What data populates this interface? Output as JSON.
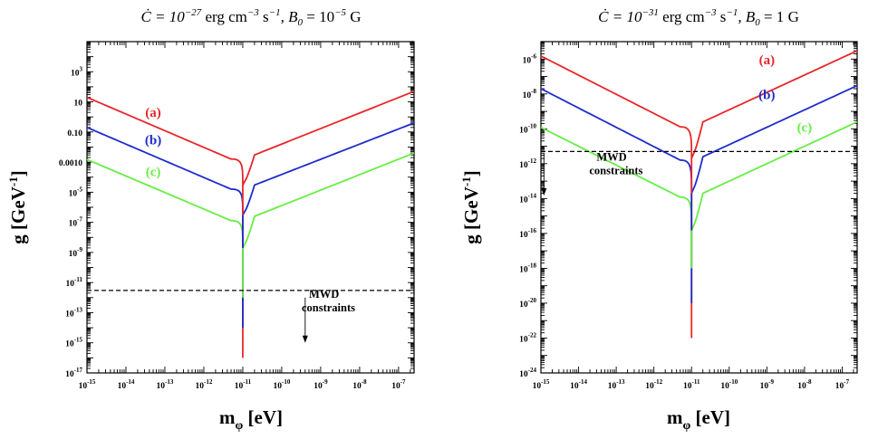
{
  "chart_data": [
    {
      "type": "line",
      "title": "Ċ = 10^−27 erg cm^−3 s^−1,  B₀ = 10^−5 G",
      "title_parts": {
        "c_exp": "-27",
        "b_val": "10",
        "b_exp": "-5",
        "b_unit": "G"
      },
      "xlabel": "m_φ [eV]",
      "ylabel": "g [GeV^-1]",
      "x_scale": "log",
      "y_scale": "log",
      "xlim": [
        1e-15,
        2.5e-07
      ],
      "ylim": [
        1e-17,
        100000.0
      ],
      "x_ticks": [
        {
          "base": "10",
          "exp": "-15",
          "value": 1e-15
        },
        {
          "base": "10",
          "exp": "-14",
          "value": 1e-14
        },
        {
          "base": "10",
          "exp": "-13",
          "value": 1e-13
        },
        {
          "base": "10",
          "exp": "-12",
          "value": 1e-12
        },
        {
          "base": "10",
          "exp": "-11",
          "value": 1e-11
        },
        {
          "base": "10",
          "exp": "-10",
          "value": 1e-10
        },
        {
          "base": "10",
          "exp": "-9",
          "value": 1e-09
        },
        {
          "base": "10",
          "exp": "-8",
          "value": 1e-08
        },
        {
          "base": "10",
          "exp": "-7",
          "value": 1e-07
        }
      ],
      "y_ticks": [
        {
          "base": "10",
          "exp": "3",
          "value": 1000.0
        },
        {
          "base": "10",
          "exp": "",
          "value": 10
        },
        {
          "base": "0.10",
          "exp": "",
          "value": 0.1
        },
        {
          "base": "0.0010",
          "exp": "",
          "value": 0.001
        },
        {
          "base": "10",
          "exp": "-5",
          "value": 1e-05
        },
        {
          "base": "10",
          "exp": "-7",
          "value": 1e-07
        },
        {
          "base": "10",
          "exp": "-9",
          "value": 1e-09
        },
        {
          "base": "10",
          "exp": "-11",
          "value": 1e-11
        },
        {
          "base": "10",
          "exp": "-13",
          "value": 1e-13
        },
        {
          "base": "10",
          "exp": "-15",
          "value": 1e-15
        },
        {
          "base": "10",
          "exp": "-17",
          "value": 1e-17
        }
      ],
      "resonance_mass": 1e-11,
      "series": [
        {
          "name": "(a)",
          "color": "#e8262a",
          "min_y": 1e-16,
          "left": {
            "x": 1e-15,
            "y": 20
          },
          "near": {
            "x": 5e-12,
            "y": 0.0016
          },
          "dip": {
            "x": 1e-11,
            "y": 3e-05
          },
          "right_near": {
            "x": 2e-11,
            "y": 0.003
          },
          "right": {
            "x": 2.5e-07,
            "y": 50
          },
          "label_at": {
            "x": 5e-14,
            "y": 1
          }
        },
        {
          "name": "(b)",
          "color": "#1f2ccc",
          "min_y": 1e-14,
          "left": {
            "x": 1e-15,
            "y": 0.2
          },
          "near": {
            "x": 5e-12,
            "y": 1.6e-05
          },
          "dip": {
            "x": 1e-11,
            "y": 3e-07
          },
          "right_near": {
            "x": 2e-11,
            "y": 3e-05
          },
          "right": {
            "x": 2.5e-07,
            "y": 0.4
          },
          "label_at": {
            "x": 5e-14,
            "y": 0.015
          }
        },
        {
          "name": "(c)",
          "color": "#66ee44",
          "min_y": 1e-12,
          "left": {
            "x": 1e-15,
            "y": 0.0015
          },
          "near": {
            "x": 5e-12,
            "y": 1.3e-07
          },
          "dip": {
            "x": 1e-11,
            "y": 2e-09
          },
          "right_near": {
            "x": 2e-11,
            "y": 2.5e-07
          },
          "right": {
            "x": 2.5e-07,
            "y": 0.004
          },
          "label_at": {
            "x": 5e-14,
            "y": 0.00012
          }
        }
      ],
      "constraint": {
        "y": 3e-12,
        "style": "dashed",
        "label_lines": [
          "MWD",
          "constraints"
        ],
        "label_at": {
          "x": 5e-10,
          "y": 1e-12
        },
        "arrow_x": 4e-10,
        "arrow_from_y": 1e-12,
        "arrow_to_y": 1e-15
      }
    },
    {
      "type": "line",
      "title": "Ċ = 10^−31 erg cm^−3 s^−1,  B₀ = 1 G",
      "title_parts": {
        "c_exp": "-31",
        "b_val": "1",
        "b_exp": "",
        "b_unit": "G"
      },
      "xlabel": "m_φ [eV]",
      "ylabel": "g [GeV^-1]",
      "x_scale": "log",
      "y_scale": "log",
      "xlim": [
        1e-15,
        2.5e-07
      ],
      "ylim": [
        1e-24,
        1e-05
      ],
      "x_ticks": [
        {
          "base": "10",
          "exp": "-15",
          "value": 1e-15
        },
        {
          "base": "10",
          "exp": "-14",
          "value": 1e-14
        },
        {
          "base": "10",
          "exp": "-13",
          "value": 1e-13
        },
        {
          "base": "10",
          "exp": "-12",
          "value": 1e-12
        },
        {
          "base": "10",
          "exp": "-11",
          "value": 1e-11
        },
        {
          "base": "10",
          "exp": "-10",
          "value": 1e-10
        },
        {
          "base": "10",
          "exp": "-9",
          "value": 1e-09
        },
        {
          "base": "10",
          "exp": "-8",
          "value": 1e-08
        },
        {
          "base": "10",
          "exp": "-7",
          "value": 1e-07
        }
      ],
      "y_ticks": [
        {
          "base": "10",
          "exp": "-6",
          "value": 1e-06
        },
        {
          "base": "10",
          "exp": "-8",
          "value": 1e-08
        },
        {
          "base": "10",
          "exp": "-10",
          "value": 1e-10
        },
        {
          "base": "10",
          "exp": "-12",
          "value": 1e-12
        },
        {
          "base": "10",
          "exp": "-14",
          "value": 1e-14
        },
        {
          "base": "10",
          "exp": "-16",
          "value": 1e-16
        },
        {
          "base": "10",
          "exp": "-18",
          "value": 1e-18
        },
        {
          "base": "10",
          "exp": "-20",
          "value": 1e-20
        },
        {
          "base": "10",
          "exp": "-22",
          "value": 1e-22
        },
        {
          "base": "10",
          "exp": "-24",
          "value": 1e-24
        }
      ],
      "resonance_mass": 1e-11,
      "series": [
        {
          "name": "(a)",
          "color": "#e8262a",
          "min_y": 1e-22,
          "left": {
            "x": 1e-15,
            "y": 1.5e-06
          },
          "near": {
            "x": 5e-12,
            "y": 1.3e-10
          },
          "dip": {
            "x": 1e-11,
            "y": 2e-12
          },
          "right_near": {
            "x": 2e-11,
            "y": 2.5e-10
          },
          "right": {
            "x": 2.5e-07,
            "y": 3e-06
          },
          "label_at": {
            "x": 1e-09,
            "y": 5e-07
          }
        },
        {
          "name": "(b)",
          "color": "#1f2ccc",
          "min_y": 1e-20,
          "left": {
            "x": 1e-15,
            "y": 2e-08
          },
          "near": {
            "x": 5e-12,
            "y": 1.6e-12
          },
          "dip": {
            "x": 1e-11,
            "y": 2e-14
          },
          "right_near": {
            "x": 2e-11,
            "y": 2.5e-12
          },
          "right": {
            "x": 2.5e-07,
            "y": 3e-08
          },
          "label_at": {
            "x": 1e-09,
            "y": 5e-09
          }
        },
        {
          "name": "(c)",
          "color": "#66ee44",
          "min_y": 1e-18,
          "left": {
            "x": 1e-15,
            "y": 1.2e-10
          },
          "near": {
            "x": 5e-12,
            "y": 1.2e-14
          },
          "dip": {
            "x": 1e-11,
            "y": 1.5e-16
          },
          "right_near": {
            "x": 2e-11,
            "y": 2e-14
          },
          "right": {
            "x": 2.5e-07,
            "y": 2.5e-10
          },
          "label_at": {
            "x": 1e-08,
            "y": 7e-11
          }
        }
      ],
      "constraint": {
        "y": 5e-12,
        "style": "dashed",
        "label_lines": [
          "MWD",
          "constraints"
        ],
        "label_at": {
          "x": 3e-14,
          "y": 1.5e-12
        },
        "arrow_x": 1.2e-15,
        "arrow_from_y": 4e-12,
        "arrow_to_y": 1.5e-14
      }
    }
  ]
}
